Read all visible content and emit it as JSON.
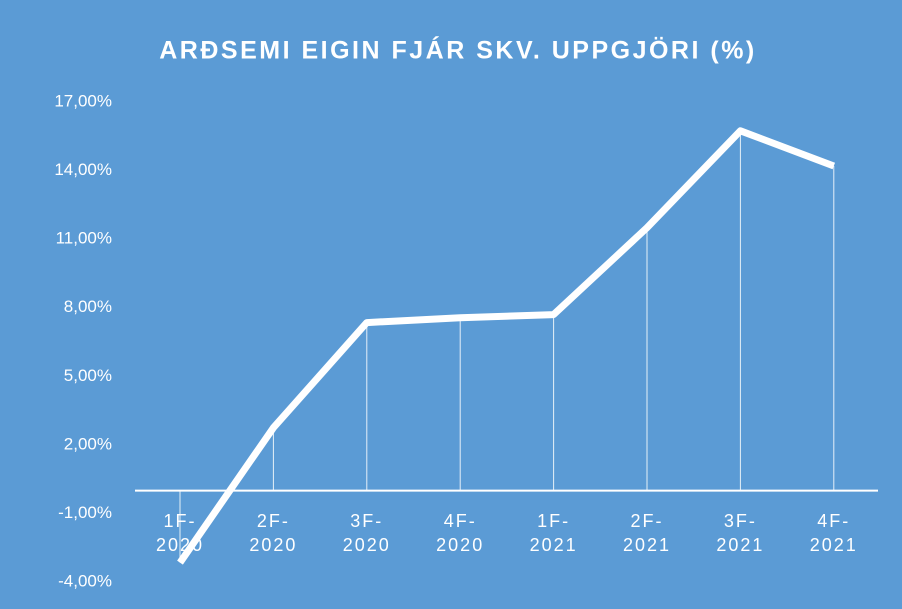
{
  "chart_data": {
    "type": "line",
    "title": "ARÐSEMI EIGIN FJÁR SKV. UPPGJÖRI (%)",
    "categories": [
      "1F-2020",
      "2F-2020",
      "3F-2020",
      "4F-2020",
      "1F-2021",
      "2F-2021",
      "3F-2021",
      "4F-2021"
    ],
    "series": [
      {
        "name": "Arðsemi eigin fjár",
        "color": "#ffffff",
        "values": [
          -3.15,
          2.75,
          7.35,
          7.56,
          7.7,
          11.5,
          15.74,
          14.2
        ]
      }
    ],
    "ylim": [
      -4,
      17
    ],
    "yticks": [
      {
        "value": -4,
        "label": "-4,00%"
      },
      {
        "value": -1,
        "label": "-1,00%"
      },
      {
        "value": 2,
        "label": "2,00%"
      },
      {
        "value": 5,
        "label": "5,00%"
      },
      {
        "value": 8,
        "label": "8,00%"
      },
      {
        "value": 11,
        "label": "11,00%"
      },
      {
        "value": 14,
        "label": "14,00%"
      },
      {
        "value": 17,
        "label": "17,00%"
      }
    ],
    "grid": false,
    "background": "#5b9bd5"
  }
}
